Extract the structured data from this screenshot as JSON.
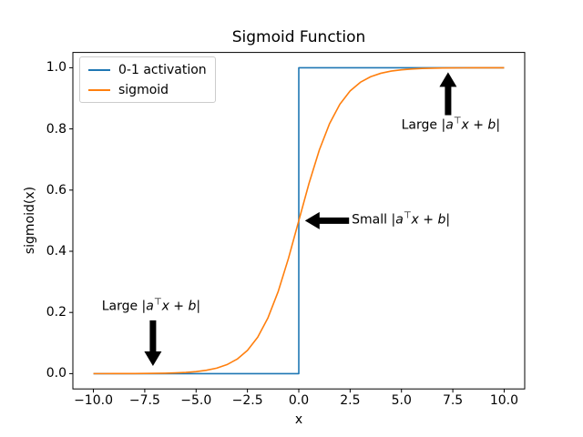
{
  "chart_data": {
    "type": "line",
    "title": "Sigmoid Function",
    "xlabel": "x",
    "ylabel": "sigmoid(x)",
    "xlim": [
      -11,
      11
    ],
    "ylim": [
      -0.05,
      1.05
    ],
    "grid": false,
    "background_color": "#ffffff",
    "axis_color": "#000000",
    "x_ticks": [
      {
        "value": -10.0,
        "label": "−10.0"
      },
      {
        "value": -7.5,
        "label": "−7.5"
      },
      {
        "value": -5.0,
        "label": "−5.0"
      },
      {
        "value": -2.5,
        "label": "−2.5"
      },
      {
        "value": 0.0,
        "label": "0.0"
      },
      {
        "value": 2.5,
        "label": "2.5"
      },
      {
        "value": 5.0,
        "label": "5.0"
      },
      {
        "value": 7.5,
        "label": "7.5"
      },
      {
        "value": 10.0,
        "label": "10.0"
      }
    ],
    "y_ticks": [
      {
        "value": 0.0,
        "label": "0.0"
      },
      {
        "value": 0.2,
        "label": "0.2"
      },
      {
        "value": 0.4,
        "label": "0.4"
      },
      {
        "value": 0.6,
        "label": "0.6"
      },
      {
        "value": 0.8,
        "label": "0.8"
      },
      {
        "value": 1.0,
        "label": "1.0"
      }
    ],
    "legend": {
      "position": "upper left",
      "border_color": "#cccccc",
      "entries": [
        "0-1 activation",
        "sigmoid"
      ]
    },
    "series": [
      {
        "name": "0-1 activation",
        "color": "#1f77b4",
        "x": [
          -10,
          0,
          0,
          10
        ],
        "y": [
          0,
          0,
          1,
          1
        ]
      },
      {
        "name": "sigmoid",
        "color": "#ff7f0e",
        "x": [
          -10,
          -9.5,
          -9,
          -8.5,
          -8,
          -7.5,
          -7,
          -6.5,
          -6,
          -5.5,
          -5,
          -4.5,
          -4,
          -3.5,
          -3,
          -2.5,
          -2,
          -1.5,
          -1,
          -0.5,
          0,
          0.5,
          1,
          1.5,
          2,
          2.5,
          3,
          3.5,
          4,
          4.5,
          5,
          5.5,
          6,
          6.5,
          7,
          7.5,
          8,
          8.5,
          9,
          9.5,
          10
        ],
        "y": [
          5e-05,
          7e-05,
          0.00012,
          0.0002,
          0.00034,
          0.00055,
          0.00091,
          0.0015,
          0.00247,
          0.00407,
          0.00669,
          0.01099,
          0.01799,
          0.02931,
          0.04743,
          0.07586,
          0.1192,
          0.18243,
          0.26894,
          0.37754,
          0.5,
          0.62246,
          0.73106,
          0.81757,
          0.8808,
          0.92414,
          0.95257,
          0.97069,
          0.98201,
          0.98901,
          0.99331,
          0.99593,
          0.99753,
          0.9985,
          0.99909,
          0.99945,
          0.99966,
          0.9998,
          0.99988,
          0.99993,
          0.99995
        ]
      }
    ],
    "annotations": [
      {
        "label": "Large |a⊤x + b|",
        "arrow_direction": "up",
        "arrow_color": "#000000",
        "arrow_tip": [
          7.27,
          0.985
        ],
        "arrow_tail": [
          7.27,
          0.845
        ],
        "text_pos": [
          7.4,
          0.812
        ],
        "align": "center"
      },
      {
        "label": "Small |a⊤x + b|",
        "arrow_direction": "left",
        "arrow_color": "#000000",
        "arrow_tip": [
          0.3,
          0.5
        ],
        "arrow_tail": [
          2.45,
          0.5
        ],
        "text_pos": [
          2.58,
          0.5
        ],
        "align": "left"
      },
      {
        "label": "Large |a⊤x + b|",
        "arrow_direction": "down",
        "arrow_color": "#000000",
        "arrow_tip": [
          -7.1,
          0.025
        ],
        "arrow_tail": [
          -7.1,
          0.174
        ],
        "text_pos": [
          -7.19,
          0.217
        ],
        "align": "center"
      }
    ]
  }
}
